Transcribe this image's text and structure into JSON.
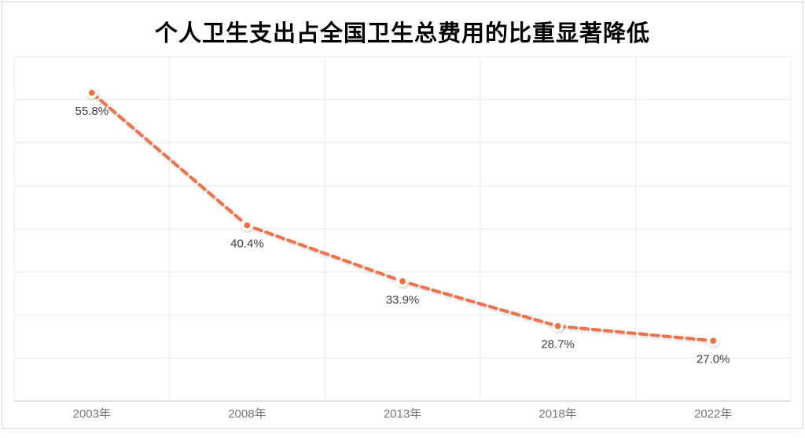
{
  "title": "个人卫生支出占全国卫生总费用的比重显著降低",
  "colors": {
    "line": "#EF7249",
    "marker_fill": "#F2703D",
    "marker_ring": "#FFFFFF",
    "grid": "#E9E9E9",
    "axis_line": "#C6C6C6",
    "card_border": "#D9D9D9",
    "data_label": "#404040",
    "axis_label": "#757575",
    "title_color": "#000000"
  },
  "chart_data": {
    "type": "line",
    "line_style": "dashed",
    "title": "个人卫生支出占全国卫生总费用的比重显著降低",
    "categories": [
      "2003年",
      "2008年",
      "2013年",
      "2018年",
      "2022年"
    ],
    "values": [
      55.8,
      40.4,
      33.9,
      28.7,
      27.0
    ],
    "point_labels": [
      "55.8%",
      "40.4%",
      "33.9%",
      "28.7%",
      "27.0%"
    ],
    "xlabel": "",
    "ylabel": "",
    "ylim": [
      20,
      60
    ],
    "gridline_step": 5,
    "grid": true,
    "y_tick_labels_visible": false,
    "legend_position": "none"
  }
}
